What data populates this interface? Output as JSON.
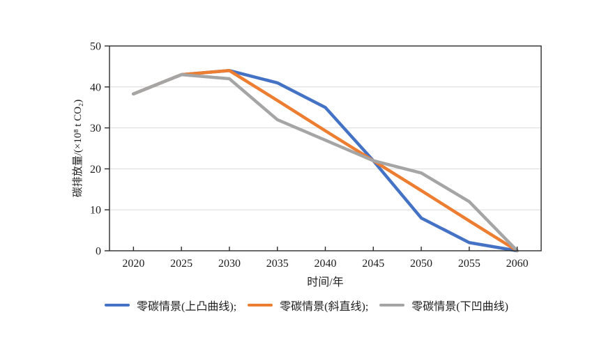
{
  "page": {
    "background": "#ffffff"
  },
  "chart_data": {
    "type": "line",
    "title": "",
    "xlabel": "时间/年",
    "ylabel": "碳排放量/(×10⁸ t CO₂)",
    "x": [
      2020,
      2025,
      2030,
      2035,
      2040,
      2045,
      2050,
      2055,
      2060
    ],
    "xlim": [
      2017.5,
      2062.5
    ],
    "ylim": [
      0,
      50
    ],
    "yticks": [
      0,
      10,
      20,
      30,
      40,
      50
    ],
    "grid": "horizontal",
    "legend_position": "bottom",
    "axis_color": "#2b2b2b",
    "gridline_color": "#d9d9d9",
    "tick_label_color": "#1d1d1d",
    "series": [
      {
        "name": "零碳情景(上凸曲线)",
        "legend_label": "零碳情景(上凸曲线);",
        "color": "#4472C4",
        "values": [
          38.3,
          43,
          44,
          41,
          35,
          22,
          8,
          2,
          0
        ]
      },
      {
        "name": "零碳情景(斜直线)",
        "legend_label": "零碳情景(斜直线);",
        "color": "#ED7D31",
        "values": [
          38.3,
          43,
          44,
          36.7,
          29.3,
          22,
          14.7,
          7.3,
          0
        ]
      },
      {
        "name": "零碳情景(下凹曲线)",
        "legend_label": "零碳情景(下凹曲线)",
        "color": "#A5A5A5",
        "values": [
          38.3,
          43,
          42,
          32,
          27,
          22,
          19,
          12,
          0
        ]
      }
    ]
  }
}
